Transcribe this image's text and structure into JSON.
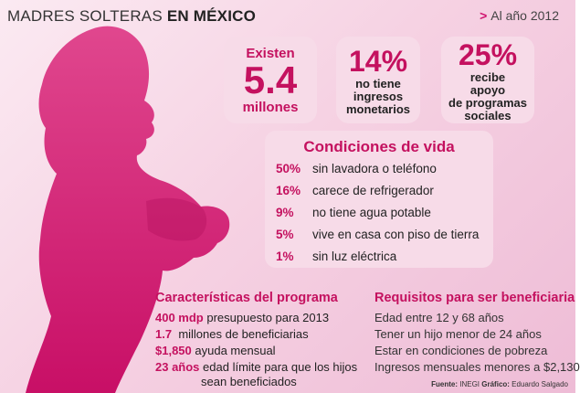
{
  "header": {
    "title_light": "MADRES SOLTERAS",
    "title_bold": "EN MÉXICO",
    "date": "Al año 2012"
  },
  "stats": {
    "existen_label": "Existen",
    "existen_value": "5.4",
    "existen_unit": "millones",
    "no_income_pct": "14%",
    "no_income_desc": [
      "no tiene",
      "ingresos",
      "monetarios"
    ],
    "support_pct": "25%",
    "support_desc": [
      "recibe",
      "apoyo",
      "de programas",
      "sociales"
    ]
  },
  "conditions": {
    "title": "Condiciones de vida",
    "items": [
      {
        "pct": "50%",
        "text": "sin lavadora o teléfono"
      },
      {
        "pct": "16%",
        "text": "carece de refrigerador"
      },
      {
        "pct": "9%",
        "text": "no tiene agua potable"
      },
      {
        "pct": "5%",
        "text": "vive en casa con piso de tierra"
      },
      {
        "pct": "1%",
        "text": "sin luz eléctrica"
      }
    ]
  },
  "program": {
    "title": "Características del programa",
    "items": [
      {
        "key": "400 mdp",
        "text": "presupuesto para 2013"
      },
      {
        "key": "1.7",
        "text": "millones de beneficiarias"
      },
      {
        "key": "$1,850",
        "text": "ayuda mensual"
      },
      {
        "key": "23 años",
        "text": "edad límite para que los hijos"
      }
    ],
    "continuation": "sean beneficiados"
  },
  "requirements": {
    "title": "Requisitos para ser beneficiaria",
    "items": [
      "Edad entre 12 y 68 años",
      "Tener un hijo menor de 24 años",
      "Estar en condiciones de pobreza",
      "Ingresos mensuales menores a $2,130"
    ]
  },
  "footer": {
    "source_label": "Fuente:",
    "source": "INEGI",
    "graphic_label": "Gráfico:",
    "graphic": "Eduardo Salgado"
  },
  "colors": {
    "accent": "#c4115f",
    "silhouette": "#d01a72",
    "background": "#f6d2e3"
  }
}
